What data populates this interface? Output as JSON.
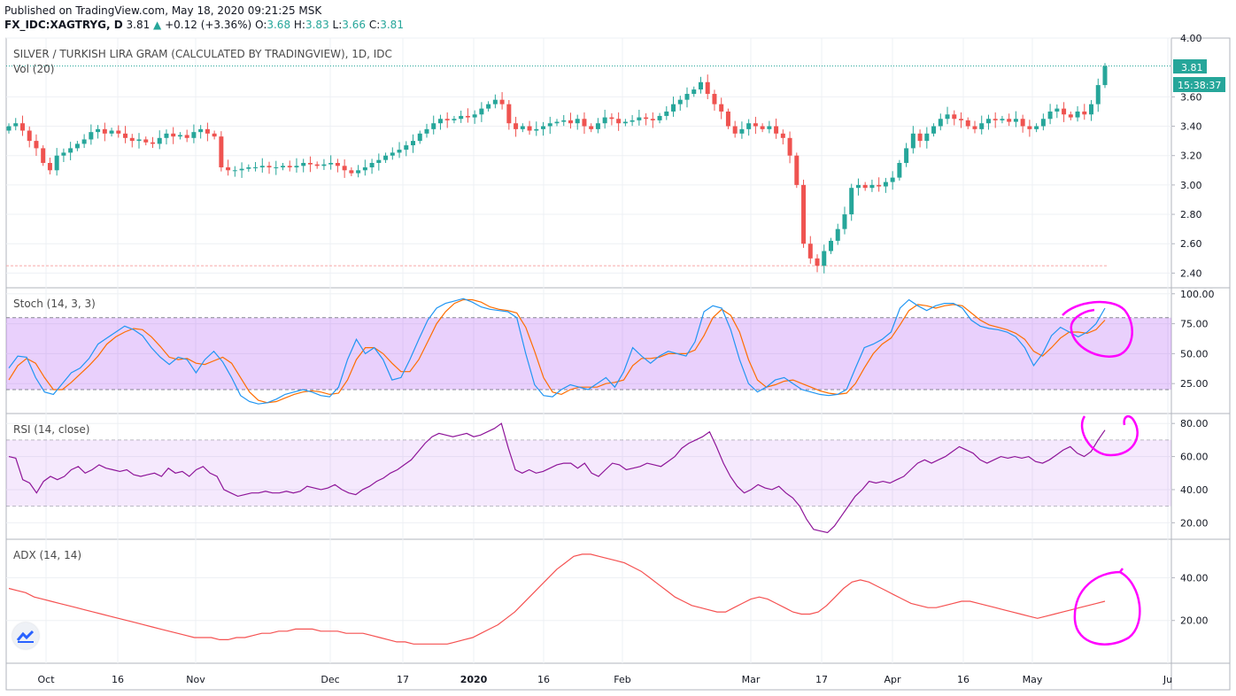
{
  "header": {
    "published": "Published on TradingView.com, May 18, 2020 09:21:25 MSK",
    "symbol": "FX_IDC:XAGTRYG, D",
    "price": "3.81",
    "change": "+0.12 (+3.36%)",
    "o_label": "O:",
    "o": "3.68",
    "h_label": "H:",
    "h": "3.83",
    "l_label": "L:",
    "l": "3.66",
    "c_label": "C:",
    "c": "3.81"
  },
  "colors": {
    "up": "#26a69a",
    "down": "#ef5350",
    "stoch_k": "#2196f3",
    "stoch_d": "#ff6d00",
    "rsi": "#8e1599",
    "adx": "#f55151",
    "band": "#9c27f0",
    "annotation": "#ff00ff"
  },
  "icons": {
    "logo": "tradingview-logo-icon",
    "price_marker": "triangle-up-icon"
  },
  "chart_data": [
    {
      "type": "candlestick",
      "title": "SILVER / TURKISH LIRA GRAM (CALCULATED BY TRADINGVIEW), 1D, IDC",
      "subtitle": "Vol (20)",
      "ylim": [
        2.3,
        4.0
      ],
      "yticks": [
        "2.40",
        "2.60",
        "2.80",
        "3.00",
        "3.20",
        "3.40",
        "3.60",
        "4.00"
      ],
      "last_price_label": "3.81",
      "countdown_label": "15:38:37",
      "reference_line": 2.45,
      "x_labels": [
        "Oct",
        "16",
        "Nov",
        "Dec",
        "17",
        "2020",
        "16",
        "Feb",
        "Mar",
        "17",
        "Apr",
        "16",
        "May",
        "Ju"
      ],
      "closes": [
        3.4,
        3.42,
        3.37,
        3.3,
        3.25,
        3.15,
        3.1,
        3.2,
        3.22,
        3.25,
        3.28,
        3.31,
        3.36,
        3.38,
        3.35,
        3.37,
        3.35,
        3.32,
        3.3,
        3.31,
        3.29,
        3.28,
        3.32,
        3.35,
        3.33,
        3.34,
        3.32,
        3.36,
        3.38,
        3.35,
        3.33,
        3.12,
        3.1,
        3.1,
        3.11,
        3.12,
        3.12,
        3.13,
        3.12,
        3.12,
        3.13,
        3.12,
        3.13,
        3.15,
        3.14,
        3.13,
        3.14,
        3.15,
        3.13,
        3.1,
        3.08,
        3.1,
        3.12,
        3.15,
        3.17,
        3.2,
        3.22,
        3.24,
        3.27,
        3.3,
        3.35,
        3.38,
        3.42,
        3.45,
        3.44,
        3.45,
        3.47,
        3.46,
        3.48,
        3.52,
        3.55,
        3.58,
        3.55,
        3.42,
        3.38,
        3.4,
        3.37,
        3.38,
        3.4,
        3.42,
        3.43,
        3.44,
        3.42,
        3.45,
        3.4,
        3.38,
        3.42,
        3.46,
        3.45,
        3.42,
        3.43,
        3.44,
        3.46,
        3.45,
        3.44,
        3.47,
        3.5,
        3.55,
        3.58,
        3.62,
        3.65,
        3.7,
        3.62,
        3.55,
        3.5,
        3.4,
        3.35,
        3.38,
        3.42,
        3.4,
        3.38,
        3.4,
        3.35,
        3.32,
        3.2,
        3.0,
        2.6,
        2.5,
        2.45,
        2.55,
        2.62,
        2.7,
        2.8,
        2.98,
        3.0,
        2.98,
        3.0,
        2.99,
        3.02,
        3.05,
        3.15,
        3.25,
        3.35,
        3.3,
        3.35,
        3.4,
        3.45,
        3.48,
        3.45,
        3.44,
        3.4,
        3.38,
        3.42,
        3.45,
        3.44,
        3.45,
        3.43,
        3.45,
        3.4,
        3.38,
        3.4,
        3.45,
        3.5,
        3.52,
        3.48,
        3.46,
        3.5,
        3.48,
        3.55,
        3.68,
        3.81
      ],
      "stoch_k": [
        38,
        48,
        47,
        30,
        18,
        16,
        25,
        34,
        38,
        46,
        58,
        63,
        68,
        73,
        70,
        65,
        55,
        47,
        41,
        47,
        45,
        34,
        45,
        52,
        43,
        30,
        15,
        10,
        8,
        9,
        12,
        16,
        18,
        20,
        18,
        15,
        14,
        22,
        45,
        62,
        50,
        55,
        45,
        28,
        30,
        45,
        62,
        78,
        88,
        92,
        94,
        96,
        93,
        89,
        87,
        86,
        85,
        80,
        50,
        24,
        15,
        14,
        20,
        24,
        22,
        20,
        25,
        30,
        22,
        35,
        55,
        48,
        42,
        48,
        52,
        50,
        48,
        60,
        85,
        90,
        88,
        70,
        45,
        25,
        18,
        22,
        28,
        30,
        25,
        20,
        18,
        16,
        15,
        16,
        20,
        38,
        55,
        58,
        62,
        68,
        88,
        95,
        90,
        86,
        90,
        92,
        92,
        88,
        78,
        73,
        71,
        70,
        68,
        64,
        55,
        40,
        50,
        65,
        72,
        68,
        64,
        68,
        75,
        88
      ],
      "stoch_d": [
        28,
        40,
        46,
        42,
        30,
        20,
        20,
        26,
        33,
        40,
        48,
        58,
        64,
        68,
        71,
        70,
        64,
        56,
        47,
        45,
        46,
        42,
        41,
        44,
        47,
        42,
        30,
        18,
        11,
        9,
        10,
        13,
        16,
        18,
        19,
        18,
        16,
        17,
        28,
        45,
        55,
        55,
        50,
        42,
        35,
        35,
        45,
        60,
        75,
        85,
        92,
        95,
        95,
        93,
        89,
        87,
        86,
        84,
        72,
        52,
        30,
        18,
        16,
        20,
        22,
        22,
        22,
        25,
        26,
        28,
        40,
        46,
        46,
        47,
        50,
        50,
        50,
        53,
        65,
        80,
        87,
        82,
        68,
        45,
        28,
        22,
        24,
        27,
        28,
        25,
        22,
        19,
        17,
        16,
        17,
        25,
        38,
        50,
        58,
        63,
        74,
        86,
        91,
        90,
        88,
        90,
        91,
        90,
        84,
        78,
        74,
        72,
        70,
        67,
        62,
        52,
        48,
        55,
        63,
        68,
        68,
        67,
        70,
        78
      ],
      "rsi": [
        60,
        59,
        46,
        44,
        38,
        45,
        48,
        46,
        48,
        52,
        54,
        50,
        52,
        55,
        53,
        52,
        51,
        52,
        49,
        48,
        49,
        50,
        48,
        53,
        50,
        51,
        48,
        52,
        54,
        50,
        48,
        40,
        38,
        36,
        37,
        38,
        38,
        39,
        38,
        38,
        39,
        38,
        39,
        42,
        41,
        40,
        41,
        43,
        40,
        38,
        37,
        40,
        42,
        45,
        47,
        50,
        52,
        55,
        58,
        63,
        68,
        72,
        74,
        73,
        72,
        73,
        74,
        72,
        73,
        75,
        77,
        80,
        65,
        52,
        50,
        52,
        50,
        51,
        53,
        55,
        56,
        56,
        53,
        56,
        50,
        48,
        52,
        56,
        55,
        52,
        53,
        54,
        56,
        55,
        54,
        57,
        60,
        65,
        68,
        70,
        72,
        75,
        66,
        56,
        48,
        42,
        38,
        40,
        43,
        41,
        40,
        42,
        38,
        35,
        30,
        22,
        16,
        15,
        14,
        18,
        24,
        30,
        36,
        40,
        45,
        44,
        45,
        44,
        46,
        48,
        52,
        56,
        58,
        56,
        58,
        60,
        63,
        66,
        64,
        62,
        58,
        56,
        58,
        60,
        59,
        60,
        59,
        60,
        57,
        56,
        58,
        61,
        64,
        66,
        62,
        60,
        63,
        70,
        76
      ],
      "adx": [
        35,
        34,
        33,
        31,
        30,
        29,
        28,
        27,
        26,
        25,
        24,
        23,
        22,
        21,
        20,
        19,
        18,
        17,
        16,
        15,
        14,
        13,
        12,
        12,
        12,
        11,
        11,
        12,
        12,
        13,
        14,
        14,
        15,
        15,
        16,
        16,
        16,
        15,
        15,
        15,
        14,
        14,
        14,
        13,
        12,
        11,
        10,
        10,
        9,
        9,
        9,
        9,
        9,
        10,
        11,
        12,
        14,
        16,
        18,
        21,
        24,
        28,
        32,
        36,
        40,
        44,
        47,
        50,
        51,
        51,
        50,
        49,
        48,
        47,
        45,
        43,
        40,
        37,
        34,
        31,
        29,
        27,
        26,
        25,
        24,
        24,
        26,
        28,
        30,
        31,
        30,
        28,
        26,
        24,
        23,
        23,
        24,
        27,
        31,
        35,
        38,
        39,
        38,
        36,
        34,
        32,
        30,
        28,
        27,
        26,
        26,
        27,
        28,
        29,
        29,
        28,
        27,
        26,
        25,
        24,
        23,
        22,
        21,
        22,
        23,
        24,
        25,
        26,
        27,
        28,
        29
      ],
      "panes": [
        {
          "label": "Stoch (14, 3, 3)",
          "yticks": [
            "100.00",
            "75.00",
            "50.00",
            "25.00"
          ],
          "band": [
            20,
            80
          ]
        },
        {
          "label": "RSI (14, close)",
          "yticks": [
            "80.00",
            "60.00",
            "40.00",
            "20.00"
          ],
          "band": [
            30,
            70
          ]
        },
        {
          "label": "ADX (14, 14)",
          "yticks": [
            "40.00",
            "20.00"
          ]
        }
      ]
    }
  ]
}
